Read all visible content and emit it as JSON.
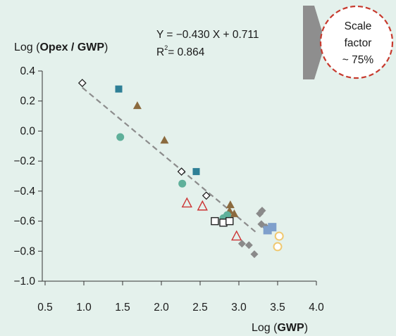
{
  "chart_data": {
    "type": "scatter",
    "ylabel": {
      "prefix": "Log (",
      "strong": "Opex / GWP",
      "suffix": ")"
    },
    "xlabel": {
      "prefix": "Log (",
      "strong": "GWP",
      "suffix": ")"
    },
    "xlim": [
      0.5,
      4.0
    ],
    "ylim": [
      -1.0,
      0.4
    ],
    "xticks": [
      "0.5",
      "1.0",
      "1.5",
      "2.0",
      "2.5",
      "3.0",
      "3.5",
      "4.0"
    ],
    "yticks": [
      "0.4",
      "0.2",
      "0.0",
      "−0.2",
      "−0.4",
      "−0.6",
      "−0.8",
      "−1.0"
    ],
    "regression": {
      "equation": "Y = −0.430 X + 0.711",
      "r2_label": "R",
      "r2_sup": "2",
      "r2_value": "= 0.864",
      "slope": -0.43,
      "intercept": 0.711,
      "x_range": [
        0.98,
        3.22
      ]
    },
    "scale_factor": {
      "lines": [
        "Scale",
        "factor",
        "~ 75%"
      ]
    },
    "series": [
      {
        "marker": "diamond-open",
        "color": "#222222",
        "points": [
          [
            0.98,
            0.32
          ],
          [
            2.26,
            -0.27
          ],
          [
            2.58,
            -0.43
          ]
        ]
      },
      {
        "marker": "square",
        "color": "#2e7f96",
        "points": [
          [
            1.45,
            0.28
          ],
          [
            2.45,
            -0.27
          ]
        ]
      },
      {
        "marker": "triangle",
        "color": "#8b6a3e",
        "points": [
          [
            1.69,
            0.17
          ],
          [
            2.04,
            -0.06
          ],
          [
            2.89,
            -0.49
          ],
          [
            2.88,
            -0.53
          ],
          [
            2.94,
            -0.55
          ]
        ]
      },
      {
        "marker": "circle",
        "color": "#5fb09a",
        "points": [
          [
            1.47,
            -0.04
          ],
          [
            2.27,
            -0.35
          ],
          [
            2.85,
            -0.56
          ],
          [
            2.8,
            -0.58
          ]
        ]
      },
      {
        "marker": "triangle-open",
        "color": "#cc3333",
        "points": [
          [
            2.33,
            -0.48
          ],
          [
            2.53,
            -0.5
          ],
          [
            2.97,
            -0.7
          ]
        ]
      },
      {
        "marker": "square-open",
        "color": "#222222",
        "points": [
          [
            2.69,
            -0.6
          ],
          [
            2.8,
            -0.61
          ],
          [
            2.88,
            -0.6
          ]
        ]
      },
      {
        "marker": "diamond",
        "color": "#8a8a8a",
        "points": [
          [
            3.27,
            -0.55
          ],
          [
            3.3,
            -0.53
          ],
          [
            3.29,
            -0.62
          ],
          [
            3.04,
            -0.75
          ],
          [
            3.13,
            -0.76
          ],
          [
            3.2,
            -0.82
          ],
          [
            3.35,
            -0.64
          ]
        ]
      },
      {
        "marker": "square-lightblue",
        "color": "#7fa0cc",
        "points": [
          [
            3.37,
            -0.66
          ],
          [
            3.43,
            -0.64
          ]
        ]
      },
      {
        "marker": "circle-yellow",
        "color": "#f0c870",
        "points": [
          [
            3.52,
            -0.7
          ],
          [
            3.5,
            -0.77
          ]
        ]
      }
    ]
  }
}
